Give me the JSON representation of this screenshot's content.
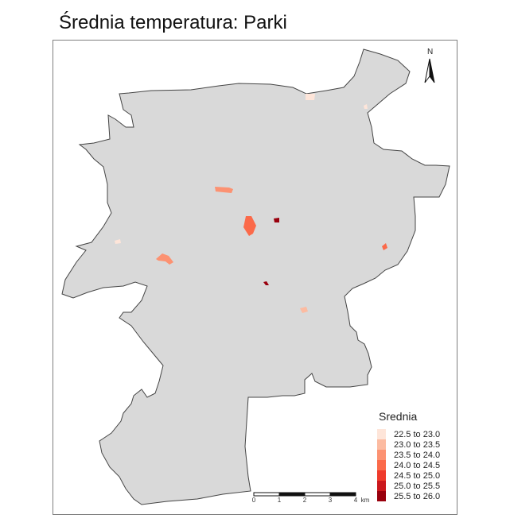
{
  "title": "Średnia temperatura: Parki",
  "legend": {
    "title": "Srednia",
    "items": [
      {
        "label": "22.5 to 23.0",
        "color": "#fee5d9"
      },
      {
        "label": "23.0 to 23.5",
        "color": "#fcbba1"
      },
      {
        "label": "23.5 to 24.0",
        "color": "#fc9272"
      },
      {
        "label": "24.0 to 24.5",
        "color": "#fb6a4a"
      },
      {
        "label": "24.5 to 25.0",
        "color": "#ef3b2c"
      },
      {
        "label": "25.0 to 25.5",
        "color": "#cb181d"
      },
      {
        "label": "25.5 to 26.0",
        "color": "#99000d"
      }
    ]
  },
  "scale_bar": {
    "ticks": [
      "0",
      "1",
      "2",
      "3",
      "4"
    ],
    "unit": "km"
  },
  "north_arrow": {
    "label": "N",
    "icon": "north-arrow-icon"
  },
  "colors": {
    "city_fill": "#d9d9d9",
    "city_border": "#444444",
    "frame": "#7f7f7f"
  },
  "parks": [
    {
      "id": "park-1",
      "class": 0
    },
    {
      "id": "park-2",
      "class": 0
    },
    {
      "id": "park-3",
      "class": 2
    },
    {
      "id": "park-4",
      "class": 3
    },
    {
      "id": "park-5",
      "class": 6
    },
    {
      "id": "park-6",
      "class": 0
    },
    {
      "id": "park-7",
      "class": 2
    },
    {
      "id": "park-8",
      "class": 3
    },
    {
      "id": "park-9",
      "class": 6
    },
    {
      "id": "park-10",
      "class": 1
    }
  ]
}
